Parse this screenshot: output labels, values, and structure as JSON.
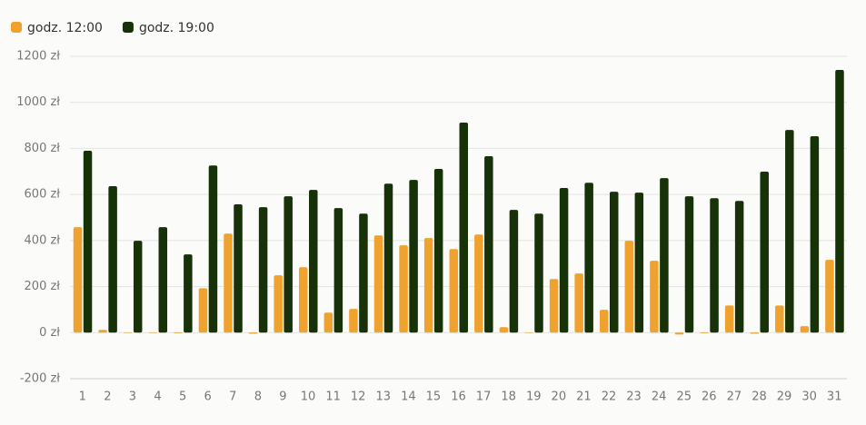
{
  "chart_data": {
    "type": "bar",
    "categories": [
      "1",
      "2",
      "3",
      "4",
      "5",
      "6",
      "7",
      "8",
      "9",
      "10",
      "11",
      "12",
      "13",
      "14",
      "15",
      "16",
      "17",
      "18",
      "19",
      "20",
      "21",
      "22",
      "23",
      "24",
      "25",
      "26",
      "27",
      "28",
      "29",
      "30",
      "31"
    ],
    "series": [
      {
        "name": "godz. 12:00",
        "color": "#f0a22e",
        "values": [
          458,
          12,
          -2,
          -2,
          -3,
          193,
          430,
          -5,
          249,
          284,
          87,
          103,
          422,
          379,
          411,
          363,
          426,
          24,
          -1,
          233,
          257,
          99,
          399,
          312,
          -8,
          -3,
          118,
          -5,
          118,
          28,
          316
        ]
      },
      {
        "name": "godz. 19:00",
        "color": "#173208",
        "values": [
          790,
          636,
          399,
          458,
          340,
          726,
          557,
          545,
          592,
          620,
          541,
          517,
          647,
          663,
          711,
          912,
          766,
          533,
          517,
          628,
          651,
          612,
          608,
          671,
          592,
          584,
          572,
          699,
          880,
          853,
          1141
        ]
      }
    ],
    "ylim": [
      -200,
      1200
    ],
    "yticks": [
      {
        "value": -200,
        "label": "-200 zł"
      },
      {
        "value": 0,
        "label": "0 zł"
      },
      {
        "value": 200,
        "label": "200 zł"
      },
      {
        "value": 400,
        "label": "400 zł"
      },
      {
        "value": 600,
        "label": "600 zł"
      },
      {
        "value": 800,
        "label": "800 zł"
      },
      {
        "value": 1000,
        "label": "1000 zł"
      },
      {
        "value": 1200,
        "label": "1200 zł"
      }
    ],
    "grid": true,
    "legend": "top-left"
  }
}
